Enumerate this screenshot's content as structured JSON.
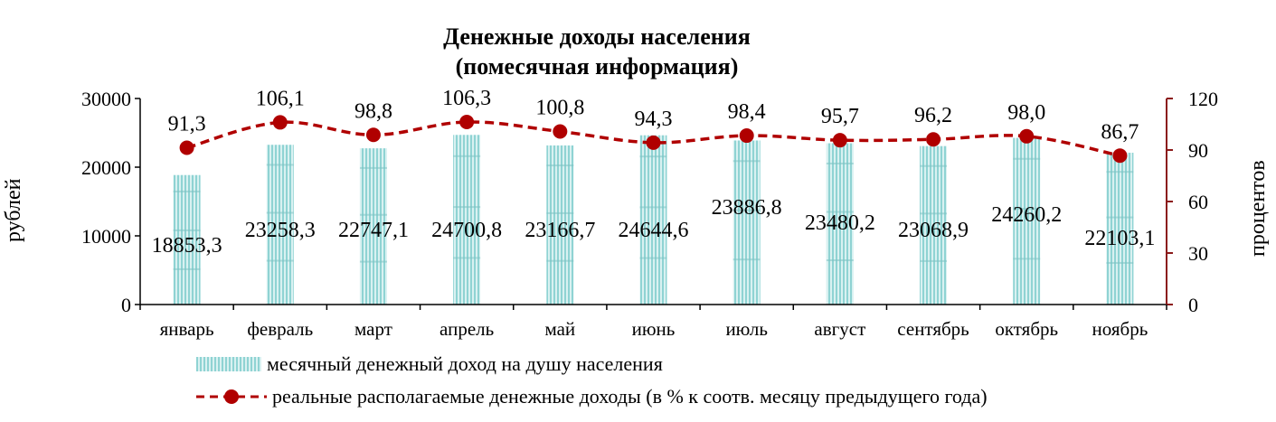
{
  "chart_data": {
    "type": "bar",
    "title": "Денежные доходы населения",
    "subtitle": "(помесячная информация)",
    "ylabel": "рублей",
    "y2label": "процентов",
    "categories": [
      "январь",
      "февраль",
      "март",
      "апрель",
      "май",
      "июнь",
      "июль",
      "август",
      "сентябрь",
      "октябрь",
      "ноябрь"
    ],
    "ylim": [
      0,
      30000
    ],
    "y_ticks": [
      "0",
      "10000",
      "20000",
      "30000"
    ],
    "y2lim": [
      0,
      120
    ],
    "y2_ticks": [
      "0",
      "30",
      "60",
      "90",
      "120"
    ],
    "series": [
      {
        "name": "месячный денежный  доход на душу населения",
        "type": "bar",
        "axis": "left",
        "values": [
          18853.3,
          23258.3,
          22747.1,
          24700.8,
          23166.7,
          24644.6,
          23886.8,
          23480.2,
          23068.9,
          24260.2,
          22103.1
        ],
        "labels": [
          "18853,3",
          "23258,3",
          "22747,1",
          "24700,8",
          "23166,7",
          "24644,6",
          "23886,8",
          "23480,2",
          "23068,9",
          "24260,2",
          "22103,1"
        ]
      },
      {
        "name": "реальные располагаемые  денежные  доходы (в % к соотв. месяцу предыдущего  года)",
        "type": "line",
        "axis": "right",
        "values": [
          91.3,
          106.1,
          98.8,
          106.3,
          100.8,
          94.3,
          98.4,
          95.7,
          96.2,
          98.0,
          86.7
        ],
        "labels": [
          "91,3",
          "106,1",
          "98,8",
          "106,3",
          "100,8",
          "94,3",
          "98,4",
          "95,7",
          "96,2",
          "98,0",
          "86,7"
        ]
      }
    ],
    "legend_position": "bottom",
    "grid": false,
    "colors": {
      "bar_light": "#d9f1f1",
      "bar_dark": "#8fd3d3",
      "bar_band": "#7cc2c2",
      "line": "#b00000",
      "axis_right": "#8b1a1a"
    }
  }
}
